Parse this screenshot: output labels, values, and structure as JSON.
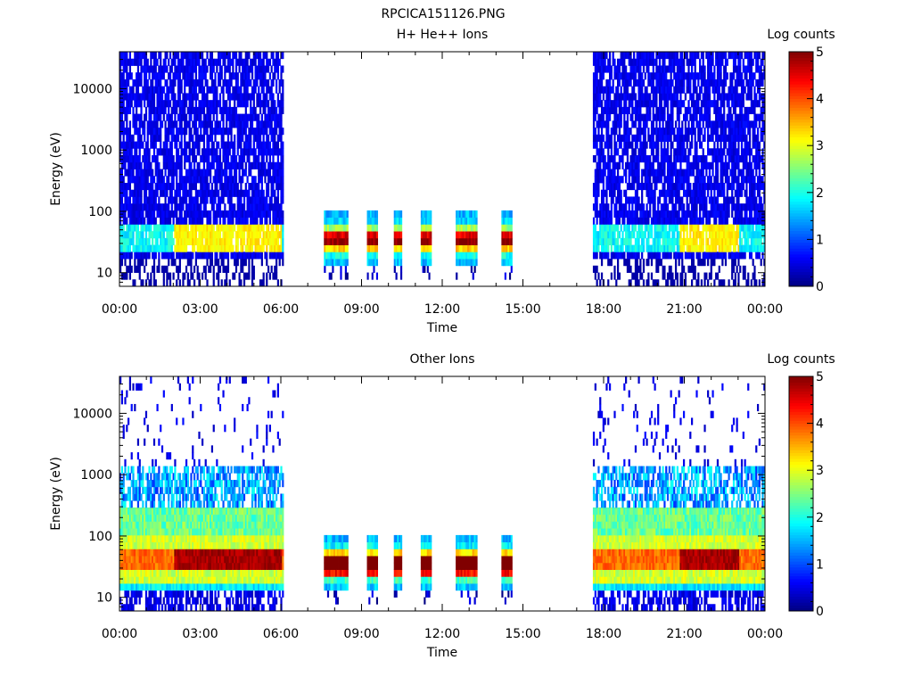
{
  "figure": {
    "title": "RPCICA151126.PNG"
  },
  "chart_data": [
    {
      "type": "heatmap",
      "title": "H+ He++ Ions",
      "xlabel": "Time",
      "ylabel": "Energy (eV)",
      "y_scale": "log",
      "ylim": [
        6,
        40000
      ],
      "xlim_hours": [
        0,
        24
      ],
      "x_ticks": [
        "00:00",
        "03:00",
        "06:00",
        "09:00",
        "12:00",
        "15:00",
        "18:00",
        "21:00",
        "00:00"
      ],
      "y_ticks": [
        10,
        100,
        1000,
        10000
      ],
      "colorbar": {
        "label": "Log counts",
        "ticks": [
          0,
          1,
          2,
          3,
          4,
          5
        ],
        "range": [
          0,
          5
        ],
        "colormap": "jet"
      },
      "coverage_hours": [
        [
          0,
          6.1
        ],
        [
          7.6,
          8.5
        ],
        [
          9.2,
          9.6
        ],
        [
          10.2,
          10.5
        ],
        [
          11.2,
          11.6
        ],
        [
          12.5,
          13.3
        ],
        [
          14.2,
          14.6
        ],
        [
          17.6,
          24
        ]
      ],
      "peak_band_eV": [
        20,
        60
      ],
      "peak_level": 3.0
    },
    {
      "type": "heatmap",
      "title": "Other Ions",
      "xlabel": "Time",
      "ylabel": "Energy (eV)",
      "y_scale": "log",
      "ylim": [
        6,
        40000
      ],
      "xlim_hours": [
        0,
        24
      ],
      "x_ticks": [
        "00:00",
        "03:00",
        "06:00",
        "09:00",
        "12:00",
        "15:00",
        "18:00",
        "21:00",
        "00:00"
      ],
      "y_ticks": [
        10,
        100,
        1000,
        10000
      ],
      "colorbar": {
        "label": "Log counts",
        "ticks": [
          0,
          1,
          2,
          3,
          4,
          5
        ],
        "range": [
          0,
          5
        ],
        "colormap": "jet"
      },
      "coverage_hours": [
        [
          0,
          6.1
        ],
        [
          7.6,
          8.5
        ],
        [
          9.2,
          9.6
        ],
        [
          10.2,
          10.5
        ],
        [
          11.2,
          11.6
        ],
        [
          12.5,
          13.3
        ],
        [
          14.2,
          14.6
        ],
        [
          17.6,
          24
        ]
      ],
      "peak_band_eV": [
        25,
        60
      ],
      "peak_level": 4.6
    }
  ]
}
